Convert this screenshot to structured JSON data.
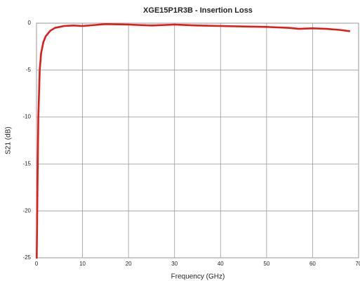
{
  "chart_data": {
    "type": "line",
    "title": "XGE15P1R3B - Insertion Loss",
    "x_label": "Frequency (GHz)",
    "y_label": "S21 (dB)",
    "x": [
      0.05,
      0.2,
      0.4,
      0.7,
      1,
      1.5,
      2,
      3,
      4,
      6,
      8,
      10,
      15,
      20,
      25,
      30,
      35,
      40,
      45,
      50,
      55,
      57,
      60,
      63,
      66,
      68
    ],
    "series": [
      {
        "name": "S21",
        "color": "#e11b1c",
        "values": [
          -25,
          -18,
          -10,
          -5,
          -3.2,
          -2,
          -1.4,
          -0.8,
          -0.5,
          -0.3,
          -0.25,
          -0.3,
          -0.1,
          -0.15,
          -0.25,
          -0.15,
          -0.25,
          -0.3,
          -0.35,
          -0.4,
          -0.5,
          -0.6,
          -0.55,
          -0.6,
          -0.72,
          -0.85
        ]
      }
    ],
    "xlim": [
      0,
      70
    ],
    "xticks": [
      0,
      10,
      20,
      30,
      40,
      50,
      60,
      70
    ],
    "ylim": [
      -25,
      0
    ],
    "yticks": [
      0,
      -5,
      -10,
      -15,
      -20,
      -25
    ],
    "grid": true
  }
}
